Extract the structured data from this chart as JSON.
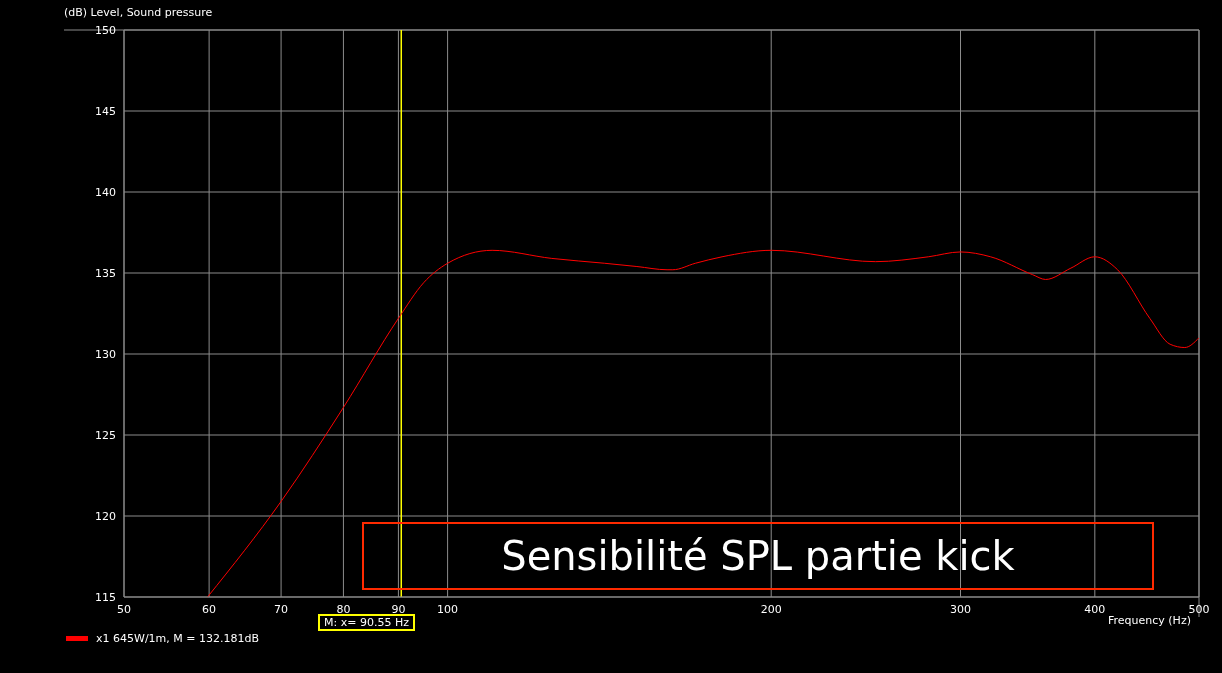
{
  "chart_data": {
    "type": "line",
    "title": "Sensibilité SPL partie kick",
    "ylabel": "(dB)  Level, Sound pressure",
    "xlabel": "Frequency  (Hz)",
    "x": [
      59.8,
      70,
      80,
      90,
      95,
      100,
      110,
      125,
      140,
      150,
      160,
      162,
      170,
      180,
      200,
      250,
      280,
      300,
      320,
      350,
      360,
      380,
      400,
      420,
      450,
      470,
      485,
      500
    ],
    "series": [
      {
        "name": "x1 645W/1m, M = 132.181dB",
        "color": "#ff0000",
        "values": [
          115,
          120.9,
          126.7,
          132.2,
          134.4,
          135.6,
          136.4,
          135.9,
          135.6,
          135.4,
          135.2,
          135.2,
          135.6,
          136.0,
          136.4,
          135.7,
          136.0,
          136.3,
          136.0,
          134.9,
          134.6,
          135.3,
          136.0,
          135.2,
          132.2,
          130.6,
          130.4,
          131.0
        ]
      }
    ],
    "log": "x",
    "xlim": [
      50,
      500
    ],
    "xticks": [
      50,
      60,
      70,
      80,
      90,
      100,
      200,
      300,
      400,
      500
    ],
    "ylim": [
      115,
      150
    ],
    "yticks": [
      115,
      120,
      125,
      130,
      135,
      140,
      145,
      150
    ],
    "grid": true,
    "legend": "bottom left",
    "marker": "none",
    "line_style": "solid",
    "ref_lines": [
      {
        "axis": "x",
        "value": 90.55,
        "label": "M:  x= 90.55 Hz",
        "color": "#ffff00"
      }
    ]
  }
}
